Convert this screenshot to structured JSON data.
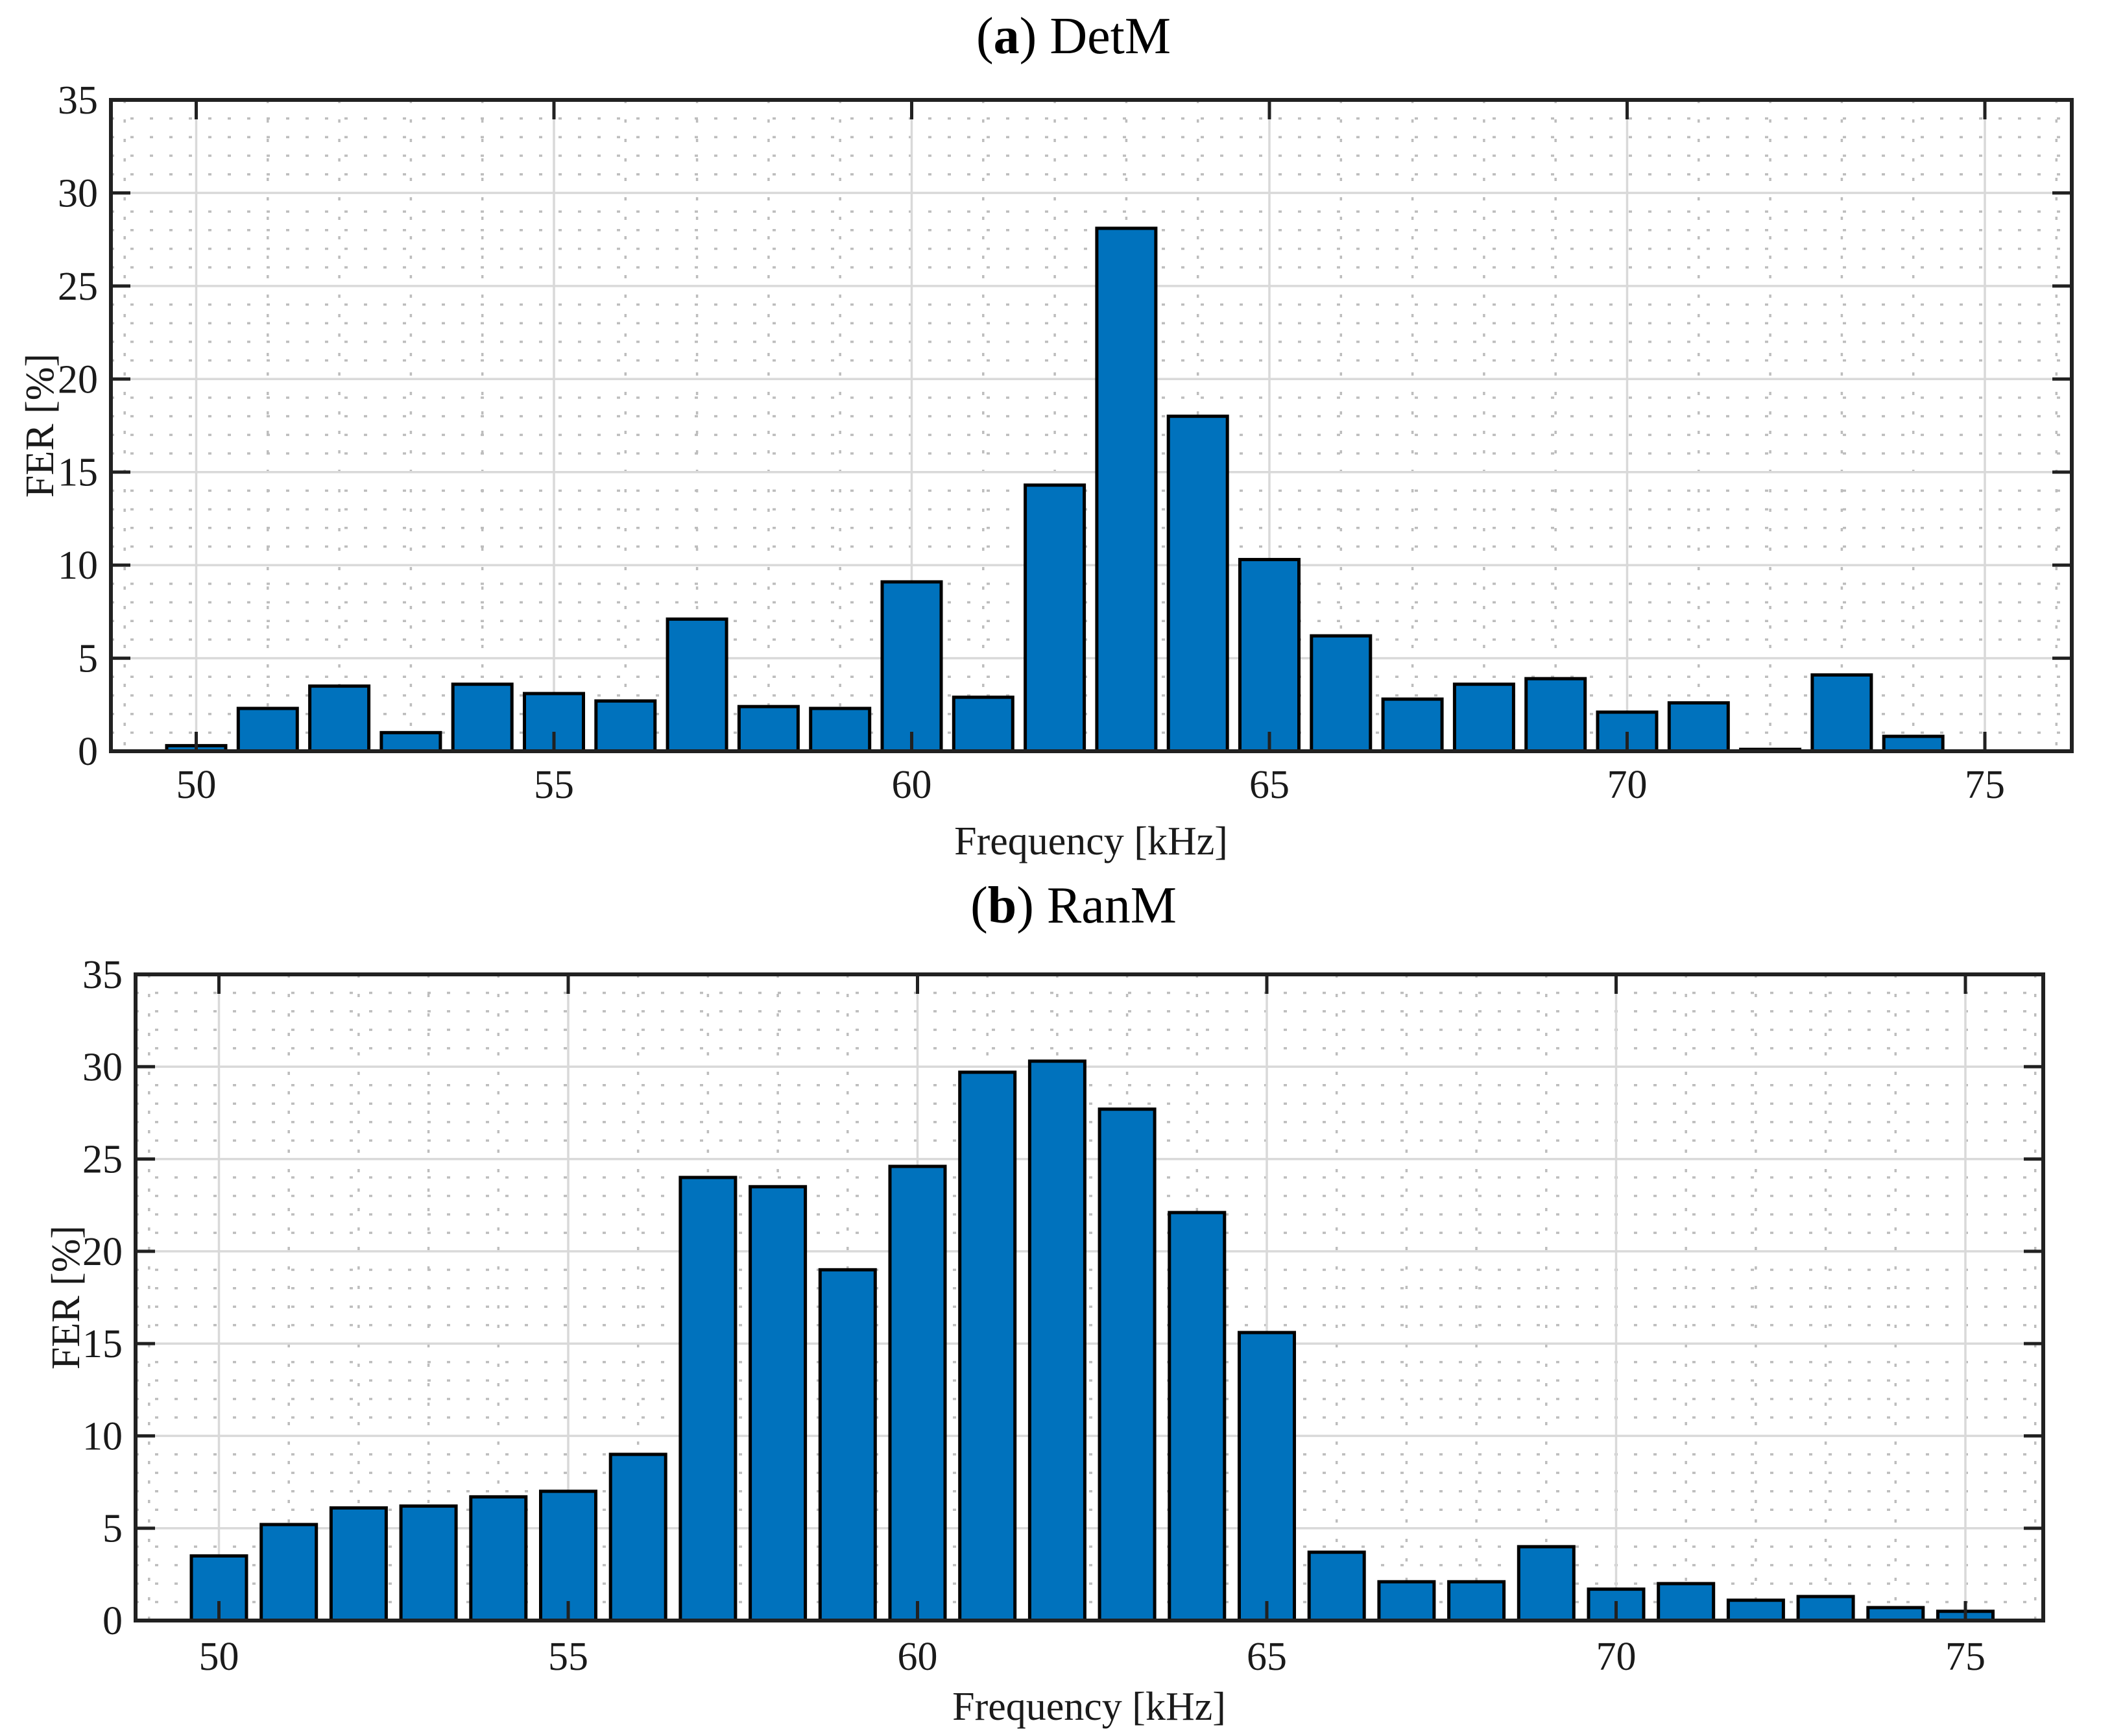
{
  "figure": {
    "background": "#ffffff",
    "style": {
      "bar_fill": "#0072BD",
      "bar_edge": "#000000",
      "axis_color": "#212121",
      "grid_major_color": "#d9d9d9",
      "grid_minor_color": "#bdbdbd",
      "text_color": "#1a1a1a"
    }
  },
  "chart_data": [
    {
      "panel": "a",
      "type": "bar",
      "title": "(a) DetM",
      "title_prefix": "(",
      "title_bold": "a",
      "title_suffix": ") DetM",
      "xlabel": "Frequency [kHz]",
      "ylabel": "FER [%]",
      "x": [
        50,
        51,
        52,
        53,
        54,
        55,
        56,
        57,
        58,
        59,
        60,
        61,
        62,
        63,
        64,
        65,
        66,
        67,
        68,
        69,
        70,
        71,
        72,
        73,
        74,
        75
      ],
      "values": [
        0.3,
        2.3,
        3.5,
        1.0,
        3.6,
        3.1,
        2.7,
        7.1,
        2.4,
        2.3,
        9.1,
        2.9,
        14.3,
        28.1,
        18.0,
        10.3,
        6.2,
        2.8,
        3.6,
        3.9,
        2.1,
        2.6,
        0.1,
        4.1,
        0.8,
        0.0
      ],
      "x_ticks": [
        50,
        55,
        60,
        65,
        70,
        75
      ],
      "y_ticks": [
        0,
        5,
        10,
        15,
        20,
        25,
        30,
        35
      ],
      "xlim": [
        48.8,
        76.2
      ],
      "ylim": [
        0,
        35
      ],
      "grid": {
        "major": "solid",
        "minor": "dotted"
      },
      "legend": "none"
    },
    {
      "panel": "b",
      "type": "bar",
      "title": "(b) RanM",
      "title_prefix": "(",
      "title_bold": "b",
      "title_suffix": ") RanM",
      "xlabel": "Frequency [kHz]",
      "ylabel": "FER [%]",
      "x": [
        50,
        51,
        52,
        53,
        54,
        55,
        56,
        57,
        58,
        59,
        60,
        61,
        62,
        63,
        64,
        65,
        66,
        67,
        68,
        69,
        70,
        71,
        72,
        73,
        74,
        75
      ],
      "values": [
        3.5,
        5.2,
        6.1,
        6.2,
        6.7,
        7.0,
        9.0,
        24.0,
        23.5,
        19.0,
        24.6,
        29.7,
        30.3,
        27.7,
        22.1,
        15.6,
        3.7,
        2.1,
        2.1,
        4.0,
        1.7,
        2.0,
        1.1,
        1.3,
        0.7,
        0.5
      ],
      "x_ticks": [
        50,
        55,
        60,
        65,
        70,
        75
      ],
      "y_ticks": [
        0,
        5,
        10,
        15,
        20,
        25,
        30,
        35
      ],
      "xlim": [
        48.8,
        76.1
      ],
      "ylim": [
        0,
        35
      ],
      "grid": {
        "major": "solid",
        "minor": "dotted"
      },
      "legend": "none"
    }
  ]
}
